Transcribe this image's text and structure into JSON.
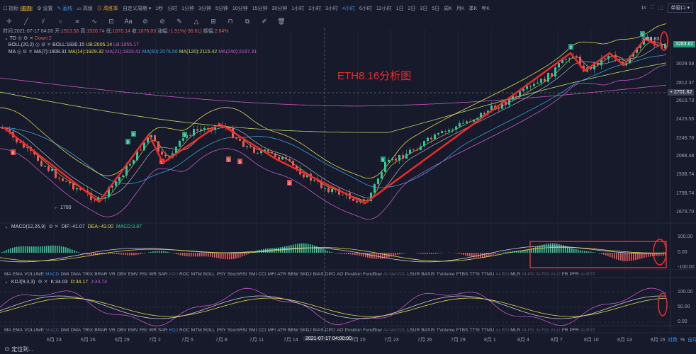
{
  "toolbar": {
    "indicator": "指标",
    "indicator_badge": "主力",
    "settings": "设置",
    "draw": "画线",
    "hilo": "高级",
    "winrate": "高胜率",
    "custom_period": "自定义周期 ▾",
    "periods": [
      "1秒",
      "分时",
      "1分钟",
      "3分钟",
      "5分钟",
      "10分钟",
      "15分钟",
      "30分钟",
      "1小时",
      "2小时",
      "3小时",
      "4小时",
      "6小时",
      "12小时",
      "1日",
      "2日",
      "3日",
      "5日",
      "周K",
      "月K",
      "季K",
      "年K"
    ],
    "active_period": "4小时",
    "refresh": "1s",
    "window_mode": "单窗口 ▾"
  },
  "draw_tools": [
    "crosshair-icon",
    "line-icon",
    "parallel-icon",
    "circle-icon",
    "hlines-icon",
    "wave-icon",
    "box-icon",
    "text-icon",
    "magnet-icon",
    "hide-icon",
    "ruler-icon",
    "lock-icon",
    "measure-icon",
    "layers-icon",
    "copy-icon",
    "edit-icon",
    "trash-icon"
  ],
  "info": {
    "time": "时间:2021-07-17 04:00",
    "open_label": "开:",
    "open": "1913.56",
    "high_label": "高:",
    "high": "1920.74",
    "low_label": "低:",
    "low": "1870.14",
    "close_label": "收:",
    "close": "1876.83",
    "change_label": "涨幅:",
    "change": "-1.91%(-36.61)",
    "amp_label": "振幅:",
    "amp": "2.64%",
    "td": "TD",
    "td_val": "Down:2",
    "boll": "BOLL(20,2)",
    "boll_val": "BOLL:1930.15",
    "boll_ub": "UB:2005.14",
    "boll_lb": "LB:1855.17",
    "ma": "MA",
    "ma7": "MA(7):1908.31",
    "ma14": "MA(14):1929.32",
    "ma21": "MA(21):1933.41",
    "ma60": "MA(60):2076.56",
    "ma120": "MA(120):2115.42",
    "ma240": "MA(240):2197.31"
  },
  "chart": {
    "annotation": "ETH8.16分析图",
    "low_label": "← 1700",
    "high_label": "3334.83",
    "td_mark": "9",
    "price_axis": [
      "3029.58",
      "2812.37",
      "2610.73",
      "2423.55",
      "2249.78",
      "2088.48",
      "1938.74",
      "1799.74",
      "1670.70"
    ],
    "last_price": "3283.62",
    "crosshair_price": "2701.62",
    "colors": {
      "up": "#2ec99a",
      "down": "#e85a5a",
      "annotation": "#f02a2a"
    }
  },
  "macd": {
    "title": "MACD(12,26,9)",
    "dif": "DIF:-41.07",
    "dea": "DEA:-43.00",
    "macd": "MACD:3.87",
    "axis": [
      "100.00",
      "0.00",
      "-100.00"
    ]
  },
  "kdj": {
    "title": "KDJ(9,3,3)",
    "k": "K:34.03",
    "d": "D:34.17",
    "j": "J:33.74",
    "axis": [
      "100.00",
      "50.00",
      "0.00"
    ]
  },
  "indicator_tabs": [
    "MA",
    "EMA",
    "VOLUME",
    "MACD",
    "DMI",
    "DMA",
    "TRIX",
    "BRAR",
    "VR",
    "OBV",
    "EMV",
    "RSI",
    "WR",
    "SAR",
    "KDJ",
    "ROC",
    "MTM",
    "BOLL",
    "PSY",
    "StochRSI",
    "SMI",
    "CCI",
    "MFI",
    "ATR",
    "BBW",
    "SKDJ",
    "BIAS",
    "DPO",
    "AO",
    "Position",
    "Fundflow",
    "AI-NetVOL",
    "LSUR",
    "BASIS",
    "TVolume",
    "FTBS",
    "TTSI",
    "TTMU",
    "AI-BSI",
    "MLR",
    "AI-PD",
    "AI-FDI",
    "AI-LI",
    "FR",
    "PFR",
    "AI-BST"
  ],
  "dates": [
    "6月 23",
    "6月 26",
    "6月 29",
    "7月 2",
    "7月 5",
    "7月 8",
    "7月 11",
    "7月 14",
    "2021-07-17 04:00:00",
    "7月 20",
    "7月 23",
    "7月 26",
    "7月 29",
    "8月 1",
    "8月 4",
    "8月 7",
    "8月 10",
    "8月 13",
    "8月 16"
  ],
  "axis_opts": {
    "log": "对数",
    "pct": "%",
    "auto": "自动"
  },
  "locate": "定位到..."
}
